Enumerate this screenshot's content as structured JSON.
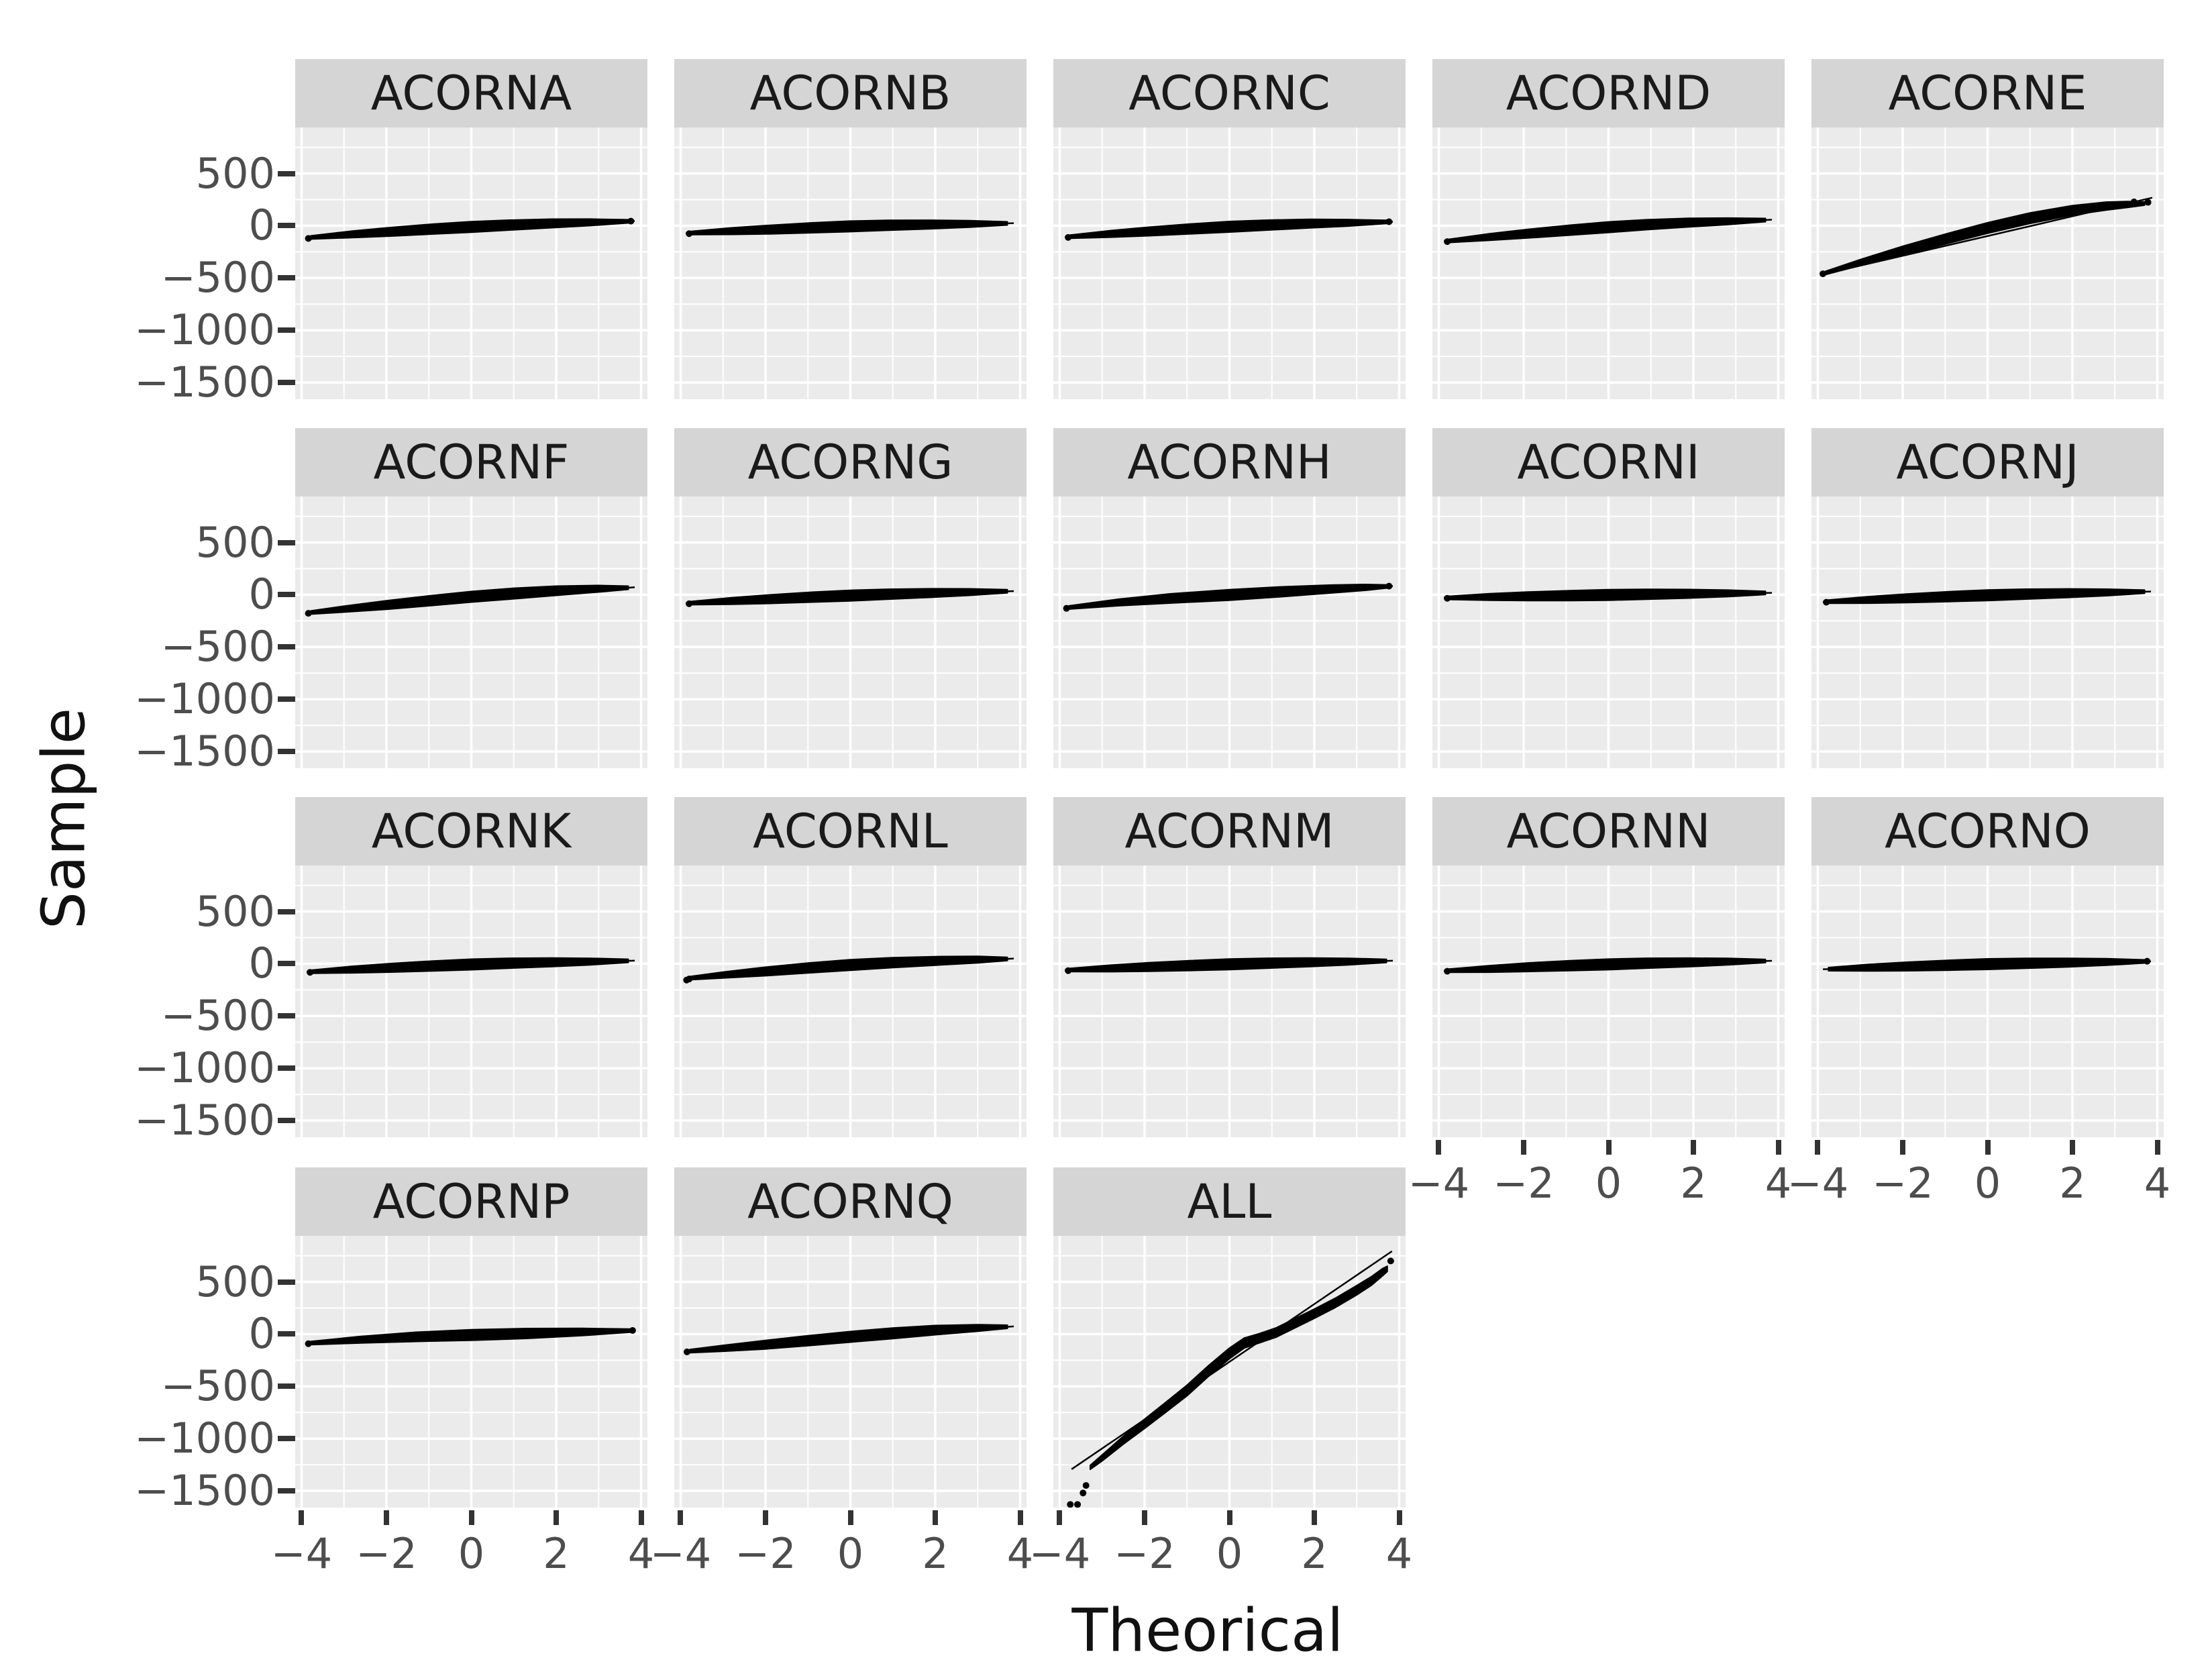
{
  "style": {
    "background": "#FFFFFF",
    "panel_bg": "#EBEBEB",
    "strip_bg": "#D5D5D5",
    "grid_color": "#FFFFFF",
    "tick_label_color": "#4D4D4D",
    "tick_mark_color": "#333333",
    "strip_text_color": "#1A1A1A",
    "axis_title_color": "#111111",
    "point_color": "#000000"
  },
  "chart_data": {
    "type": "scatter",
    "subtype": "qq-facet-grid",
    "x_label": "Theorical",
    "y_label": "Sample",
    "legend": "none",
    "grid": "on",
    "x_range": [
      -4.15,
      4.15
    ],
    "y_range": [
      -1660,
      940
    ],
    "x_ticks": [
      -4,
      -2,
      0,
      2,
      4
    ],
    "x_tick_labels": [
      "−4",
      "−2",
      "0",
      "2",
      "4"
    ],
    "x_minor_ticks": [
      -3,
      -1,
      1,
      3
    ],
    "y_ticks": [
      500,
      0,
      -500,
      -1000,
      -1500
    ],
    "y_tick_labels": [
      "500",
      "0",
      "−500",
      "−1000",
      "−1500"
    ],
    "y_minor_ticks": [
      750,
      250,
      -250,
      -750,
      -1250
    ],
    "facets": [
      {
        "label": "ACORNA",
        "row": 0,
        "col": 0,
        "ref_line": [
          -3.9,
          -118,
          3.85,
          45
        ],
        "band": [
          [
            -3.78,
            -112,
            2.5
          ],
          [
            -2.8,
            -82,
            5
          ],
          [
            -1.9,
            -58,
            6.5
          ],
          [
            -0.9,
            -32,
            7.5
          ],
          [
            0,
            -12,
            8
          ],
          [
            0.9,
            6,
            7.5
          ],
          [
            1.9,
            22,
            6.5
          ],
          [
            2.8,
            32,
            5
          ],
          [
            3.7,
            42,
            2.5
          ]
        ],
        "dots": [
          [
            -3.84,
            -122
          ],
          [
            3.76,
            44
          ]
        ]
      },
      {
        "label": "ACORNB",
        "row": 0,
        "col": 1,
        "ref_line": [
          -3.88,
          -72,
          3.85,
          24
        ],
        "band": [
          [
            -3.75,
            -70,
            2.5
          ],
          [
            -2.8,
            -52,
            5
          ],
          [
            -1.9,
            -37,
            6.5
          ],
          [
            -0.9,
            -20,
            7.5
          ],
          [
            0,
            -6,
            8
          ],
          [
            0.9,
            4,
            7.5
          ],
          [
            1.9,
            12,
            6.5
          ],
          [
            2.8,
            17,
            5
          ],
          [
            3.7,
            22,
            2.5
          ]
        ],
        "dots": [
          [
            -3.8,
            -76
          ]
        ]
      },
      {
        "label": "ACORNC",
        "row": 0,
        "col": 2,
        "ref_line": [
          -3.88,
          -108,
          3.85,
          39
        ],
        "band": [
          [
            -3.75,
            -105,
            2.5
          ],
          [
            -2.8,
            -78,
            5
          ],
          [
            -1.9,
            -55,
            6.5
          ],
          [
            -0.9,
            -30,
            7.5
          ],
          [
            0,
            -10,
            8
          ],
          [
            0.9,
            6,
            7.5
          ],
          [
            1.9,
            20,
            6.5
          ],
          [
            2.8,
            28,
            5
          ],
          [
            3.7,
            36,
            2.5
          ]
        ],
        "dots": [
          [
            -3.8,
            -112
          ],
          [
            3.76,
            38
          ]
        ]
      },
      {
        "label": "ACORND",
        "row": 0,
        "col": 3,
        "ref_line": [
          -3.88,
          -149,
          3.85,
          58
        ],
        "band": [
          [
            -3.75,
            -145,
            2.5
          ],
          [
            -2.8,
            -108,
            5
          ],
          [
            -1.9,
            -76,
            6.5
          ],
          [
            -0.9,
            -42,
            7.5
          ],
          [
            0,
            -14,
            8
          ],
          [
            0.9,
            10,
            7.5
          ],
          [
            1.9,
            30,
            6.5
          ],
          [
            2.8,
            42,
            5
          ],
          [
            3.7,
            54,
            2.5
          ]
        ],
        "dots": [
          [
            -3.8,
            -152
          ]
        ]
      },
      {
        "label": "ACORNE",
        "row": 0,
        "col": 4,
        "ref_line": [
          -3.93,
          -470,
          3.88,
          268
        ],
        "band": [
          [
            -3.82,
            -452,
            2.5
          ],
          [
            -3,
            -352,
            4.5
          ],
          [
            -2,
            -238,
            6.5
          ],
          [
            -1,
            -128,
            7.5
          ],
          [
            0,
            -22,
            8
          ],
          [
            1,
            72,
            8
          ],
          [
            2,
            148,
            7
          ],
          [
            2.8,
            188,
            6
          ],
          [
            3.3,
            203,
            4.5
          ],
          [
            3.7,
            212,
            2.5
          ]
        ],
        "dots": [
          [
            -3.88,
            -460
          ],
          [
            3.78,
            224
          ],
          [
            3.45,
            228
          ]
        ]
      },
      {
        "label": "ACORNF",
        "row": 1,
        "col": 0,
        "ref_line": [
          -3.9,
          -178,
          3.85,
          72
        ],
        "band": [
          [
            -3.78,
            -170,
            2.5
          ],
          [
            -3,
            -138,
            4.5
          ],
          [
            -2,
            -99,
            6.5
          ],
          [
            -1,
            -58,
            7.5
          ],
          [
            0,
            -20,
            8
          ],
          [
            1,
            12,
            8
          ],
          [
            2,
            38,
            7
          ],
          [
            3,
            57,
            5
          ],
          [
            3.7,
            67,
            2.5
          ]
        ],
        "dots": [
          [
            -3.84,
            -178
          ]
        ]
      },
      {
        "label": "ACORNG",
        "row": 1,
        "col": 1,
        "ref_line": [
          -3.88,
          -82,
          3.85,
          35
        ],
        "band": [
          [
            -3.75,
            -80,
            2.5
          ],
          [
            -2.8,
            -60,
            5
          ],
          [
            -1.9,
            -42,
            6.5
          ],
          [
            -0.9,
            -23,
            7.5
          ],
          [
            0,
            -8,
            8
          ],
          [
            0.9,
            5,
            7.5
          ],
          [
            1.9,
            16,
            6.5
          ],
          [
            2.8,
            25,
            5
          ],
          [
            3.7,
            33,
            2.5
          ]
        ],
        "dots": [
          [
            -3.8,
            -86
          ]
        ]
      },
      {
        "label": "ACORNH",
        "row": 1,
        "col": 2,
        "ref_line": [
          -3.9,
          -126,
          3.85,
          83
        ],
        "band": [
          [
            -3.78,
            -122,
            2.5
          ],
          [
            -2.6,
            -74,
            5
          ],
          [
            -1.4,
            -36,
            7
          ],
          [
            0,
            -2,
            8
          ],
          [
            1.2,
            28,
            7.5
          ],
          [
            2.4,
            55,
            6
          ],
          [
            3.2,
            70,
            4.5
          ],
          [
            3.7,
            79,
            2.5
          ]
        ],
        "dots": [
          [
            -3.84,
            -130
          ],
          [
            3.76,
            82
          ]
        ]
      },
      {
        "label": "ACORNI",
        "row": 1,
        "col": 3,
        "ref_line": [
          -3.88,
          -31,
          3.85,
          18
        ],
        "band": [
          [
            -3.75,
            -30,
            2.5
          ],
          [
            -2.8,
            -22,
            5
          ],
          [
            -1.9,
            -15,
            6.5
          ],
          [
            -0.9,
            -8,
            7.5
          ],
          [
            0,
            -2,
            8
          ],
          [
            0.9,
            4,
            7.5
          ],
          [
            1.9,
            9,
            6.5
          ],
          [
            2.8,
            13,
            5
          ],
          [
            3.7,
            17,
            2.5
          ]
        ],
        "dots": [
          [
            -3.8,
            -34
          ]
        ]
      },
      {
        "label": "ACORNJ",
        "row": 1,
        "col": 4,
        "ref_line": [
          -3.88,
          -68,
          3.85,
          31
        ],
        "band": [
          [
            -3.75,
            -66,
            2.5
          ],
          [
            -2.8,
            -49,
            5
          ],
          [
            -1.9,
            -34,
            6.5
          ],
          [
            -0.9,
            -18,
            7.5
          ],
          [
            0,
            -5,
            8
          ],
          [
            0.9,
            6,
            7.5
          ],
          [
            1.9,
            15,
            6.5
          ],
          [
            2.8,
            22,
            5
          ],
          [
            3.7,
            29,
            2.5
          ]
        ],
        "dots": [
          [
            -3.8,
            -72
          ]
        ]
      },
      {
        "label": "ACORNK",
        "row": 2,
        "col": 0,
        "ref_line": [
          -3.88,
          -78,
          3.85,
          30
        ],
        "band": [
          [
            -3.75,
            -76,
            2.5
          ],
          [
            -2.8,
            -56,
            5
          ],
          [
            -1.9,
            -39,
            6.5
          ],
          [
            -0.9,
            -21,
            7.5
          ],
          [
            0,
            -7,
            8
          ],
          [
            0.9,
            5,
            7.5
          ],
          [
            1.9,
            14,
            6.5
          ],
          [
            2.8,
            21,
            5
          ],
          [
            3.7,
            28,
            2.5
          ]
        ],
        "dots": [
          [
            -3.8,
            -82
          ]
        ]
      },
      {
        "label": "ACORNL",
        "row": 2,
        "col": 1,
        "ref_line": [
          -3.9,
          -141,
          3.85,
          50
        ],
        "band": [
          [
            -3.78,
            -138,
            2.5
          ],
          [
            -3,
            -108,
            4.5
          ],
          [
            -2,
            -74,
            6.5
          ],
          [
            -1,
            -41,
            7.5
          ],
          [
            0,
            -12,
            8
          ],
          [
            1,
            11,
            7.5
          ],
          [
            2,
            27,
            6.5
          ],
          [
            3,
            39,
            5
          ],
          [
            3.7,
            46,
            2.5
          ]
        ],
        "dots": [
          [
            -3.86,
            -156
          ],
          [
            -3.8,
            -146
          ]
        ]
      },
      {
        "label": "ACORNM",
        "row": 2,
        "col": 2,
        "ref_line": [
          -3.88,
          -62,
          3.85,
          29
        ],
        "band": [
          [
            -3.75,
            -60,
            2.5
          ],
          [
            -2.8,
            -45,
            5
          ],
          [
            -1.9,
            -31,
            6.5
          ],
          [
            -0.9,
            -17,
            7.5
          ],
          [
            0,
            -5,
            8
          ],
          [
            0.9,
            5,
            7.5
          ],
          [
            1.9,
            14,
            6.5
          ],
          [
            2.8,
            21,
            5
          ],
          [
            3.7,
            27,
            2.5
          ]
        ],
        "dots": [
          [
            -3.8,
            -66
          ]
        ]
      },
      {
        "label": "ACORNN",
        "row": 2,
        "col": 3,
        "ref_line": [
          -3.88,
          -68,
          3.85,
          28
        ],
        "band": [
          [
            -3.75,
            -66,
            2.5
          ],
          [
            -2.8,
            -49,
            5
          ],
          [
            -1.9,
            -33,
            6.5
          ],
          [
            -0.9,
            -18,
            7.5
          ],
          [
            0,
            -6,
            8
          ],
          [
            0.9,
            5,
            7.5
          ],
          [
            1.9,
            13,
            6.5
          ],
          [
            2.8,
            20,
            5
          ],
          [
            3.7,
            26,
            2.5
          ]
        ],
        "dots": [
          [
            -3.8,
            -72
          ]
        ]
      },
      {
        "label": "ACORNO",
        "row": 2,
        "col": 4,
        "ref_line": [
          -3.88,
          -53,
          3.85,
          23
        ],
        "band": [
          [
            -3.75,
            -52,
            2.5
          ],
          [
            -2.8,
            -38,
            5
          ],
          [
            -1.9,
            -26,
            6.5
          ],
          [
            -0.9,
            -14,
            7.5
          ],
          [
            0,
            -4,
            8
          ],
          [
            0.9,
            4,
            7.5
          ],
          [
            1.9,
            11,
            6.5
          ],
          [
            2.8,
            17,
            5
          ],
          [
            3.7,
            22,
            2.5
          ]
        ],
        "dots": [
          [
            3.76,
            24
          ]
        ]
      },
      {
        "label": "ACORNP",
        "row": 3,
        "col": 0,
        "ref_line": [
          -3.9,
          -88,
          3.87,
          35
        ],
        "band": [
          [
            -3.78,
            -86,
            2.5
          ],
          [
            -2.6,
            -54,
            5
          ],
          [
            -1.3,
            -26,
            7
          ],
          [
            0,
            -8,
            8
          ],
          [
            1.3,
            6,
            7.5
          ],
          [
            2.6,
            20,
            5.5
          ],
          [
            3.74,
            33,
            2.5
          ]
        ],
        "dots": [
          [
            -3.84,
            -92
          ],
          [
            3.8,
            35
          ]
        ]
      },
      {
        "label": "ACORNQ",
        "row": 3,
        "col": 1,
        "ref_line": [
          -3.9,
          -172,
          3.85,
          74
        ],
        "band": [
          [
            -3.78,
            -163,
            2.5
          ],
          [
            -3,
            -136,
            4.5
          ],
          [
            -2,
            -101,
            6.5
          ],
          [
            -1,
            -63,
            7.5
          ],
          [
            0,
            -26,
            8
          ],
          [
            1,
            8,
            8
          ],
          [
            2,
            38,
            7
          ],
          [
            3,
            59,
            5
          ],
          [
            3.7,
            70,
            2.5
          ]
        ],
        "dots": [
          [
            -3.85,
            -170
          ]
        ]
      },
      {
        "label": "ALL",
        "row": 3,
        "col": 2,
        "ref_line": [
          -3.72,
          -1293,
          3.83,
          793
        ],
        "band": [
          [
            -3.28,
            -1275,
            3
          ],
          [
            -3.0,
            -1185,
            4.5
          ],
          [
            -2.5,
            -1015,
            6
          ],
          [
            -2.0,
            -858,
            7
          ],
          [
            -1.5,
            -700,
            7.5
          ],
          [
            -1.0,
            -540,
            8
          ],
          [
            -0.5,
            -355,
            8
          ],
          [
            0,
            -185,
            8
          ],
          [
            0.35,
            -85,
            7.5
          ],
          [
            0.7,
            -40,
            7
          ],
          [
            1.1,
            15,
            7
          ],
          [
            1.5,
            95,
            7
          ],
          [
            2.0,
            195,
            7
          ],
          [
            2.5,
            300,
            7
          ],
          [
            3.0,
            420,
            7
          ],
          [
            3.35,
            510,
            6.5
          ],
          [
            3.6,
            590,
            5.5
          ],
          [
            3.72,
            625,
            4
          ]
        ],
        "dots": [
          [
            -3.75,
            -1630
          ],
          [
            -3.58,
            -1630
          ],
          [
            -3.45,
            -1520
          ],
          [
            -3.38,
            -1448
          ],
          [
            3.8,
            700
          ]
        ]
      }
    ]
  }
}
